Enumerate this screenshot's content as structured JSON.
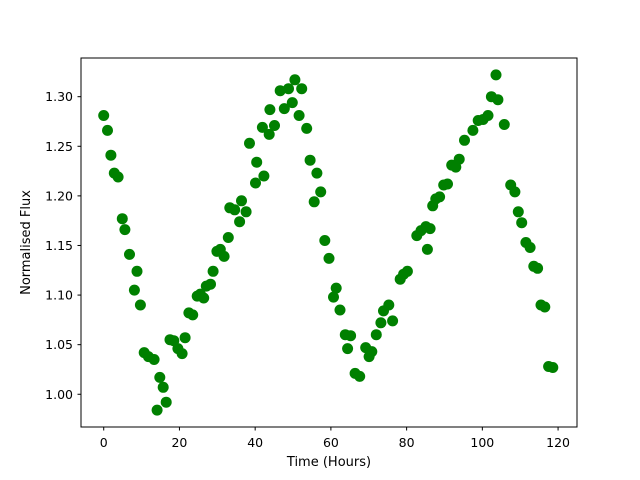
{
  "figure": {
    "background_color": "#ffffff",
    "frame_color": "#000000",
    "text_color": "#000000"
  },
  "chart_data": {
    "type": "scatter",
    "title": "",
    "xlabel": "Time (Hours)",
    "ylabel": "Normalised Flux",
    "xlim": [
      -6.0,
      125.0
    ],
    "ylim": [
      0.967,
      1.339
    ],
    "xticks": [
      0,
      20,
      40,
      60,
      80,
      100,
      120
    ],
    "yticks": [
      1.0,
      1.05,
      1.1,
      1.15,
      1.2,
      1.25,
      1.3
    ],
    "grid": false,
    "legend_position": "none",
    "marker": {
      "shape": "circle",
      "color": "#008000",
      "radius_px": 5.5
    },
    "points": [
      [
        0.0,
        1.281
      ],
      [
        1.0,
        1.266
      ],
      [
        1.9,
        1.241
      ],
      [
        2.8,
        1.223
      ],
      [
        3.8,
        1.219
      ],
      [
        4.9,
        1.177
      ],
      [
        5.6,
        1.166
      ],
      [
        6.8,
        1.141
      ],
      [
        8.1,
        1.105
      ],
      [
        8.8,
        1.124
      ],
      [
        9.7,
        1.09
      ],
      [
        10.7,
        1.042
      ],
      [
        11.8,
        1.038
      ],
      [
        13.3,
        1.035
      ],
      [
        14.1,
        0.984
      ],
      [
        14.8,
        1.017
      ],
      [
        15.7,
        1.007
      ],
      [
        16.5,
        0.992
      ],
      [
        17.5,
        1.055
      ],
      [
        18.5,
        1.054
      ],
      [
        19.6,
        1.046
      ],
      [
        20.7,
        1.041
      ],
      [
        21.5,
        1.057
      ],
      [
        22.5,
        1.082
      ],
      [
        23.5,
        1.08
      ],
      [
        24.7,
        1.099
      ],
      [
        25.5,
        1.101
      ],
      [
        26.4,
        1.097
      ],
      [
        27.1,
        1.109
      ],
      [
        28.2,
        1.111
      ],
      [
        28.9,
        1.124
      ],
      [
        29.9,
        1.144
      ],
      [
        30.8,
        1.146
      ],
      [
        31.8,
        1.139
      ],
      [
        32.9,
        1.158
      ],
      [
        33.3,
        1.188
      ],
      [
        34.6,
        1.186
      ],
      [
        35.9,
        1.174
      ],
      [
        36.4,
        1.195
      ],
      [
        37.6,
        1.184
      ],
      [
        38.5,
        1.253
      ],
      [
        40.1,
        1.213
      ],
      [
        40.4,
        1.234
      ],
      [
        41.9,
        1.269
      ],
      [
        42.3,
        1.22
      ],
      [
        43.7,
        1.262
      ],
      [
        43.9,
        1.287
      ],
      [
        45.1,
        1.271
      ],
      [
        46.6,
        1.306
      ],
      [
        47.7,
        1.288
      ],
      [
        48.8,
        1.308
      ],
      [
        49.8,
        1.294
      ],
      [
        50.5,
        1.317
      ],
      [
        51.6,
        1.281
      ],
      [
        52.3,
        1.308
      ],
      [
        53.6,
        1.268
      ],
      [
        54.5,
        1.236
      ],
      [
        55.6,
        1.194
      ],
      [
        56.3,
        1.223
      ],
      [
        57.3,
        1.204
      ],
      [
        58.4,
        1.155
      ],
      [
        59.5,
        1.137
      ],
      [
        60.7,
        1.098
      ],
      [
        61.4,
        1.107
      ],
      [
        62.4,
        1.085
      ],
      [
        63.8,
        1.06
      ],
      [
        64.4,
        1.046
      ],
      [
        65.2,
        1.059
      ],
      [
        66.4,
        1.021
      ],
      [
        67.6,
        1.018
      ],
      [
        69.2,
        1.047
      ],
      [
        70.1,
        1.038
      ],
      [
        70.8,
        1.043
      ],
      [
        72.0,
        1.06
      ],
      [
        73.2,
        1.072
      ],
      [
        73.9,
        1.084
      ],
      [
        75.3,
        1.09
      ],
      [
        76.3,
        1.074
      ],
      [
        78.3,
        1.116
      ],
      [
        79.2,
        1.121
      ],
      [
        80.2,
        1.124
      ],
      [
        82.7,
        1.16
      ],
      [
        83.8,
        1.165
      ],
      [
        85.1,
        1.169
      ],
      [
        85.5,
        1.146
      ],
      [
        86.2,
        1.167
      ],
      [
        86.9,
        1.19
      ],
      [
        87.7,
        1.197
      ],
      [
        88.7,
        1.199
      ],
      [
        89.8,
        1.211
      ],
      [
        90.8,
        1.212
      ],
      [
        91.9,
        1.231
      ],
      [
        93.0,
        1.229
      ],
      [
        93.9,
        1.237
      ],
      [
        95.3,
        1.256
      ],
      [
        97.5,
        1.266
      ],
      [
        98.9,
        1.276
      ],
      [
        100.2,
        1.277
      ],
      [
        101.5,
        1.281
      ],
      [
        102.4,
        1.3
      ],
      [
        103.6,
        1.322
      ],
      [
        104.1,
        1.297
      ],
      [
        105.8,
        1.272
      ],
      [
        107.5,
        1.211
      ],
      [
        108.6,
        1.204
      ],
      [
        109.5,
        1.184
      ],
      [
        110.4,
        1.173
      ],
      [
        111.5,
        1.153
      ],
      [
        112.6,
        1.148
      ],
      [
        113.6,
        1.129
      ],
      [
        114.6,
        1.127
      ],
      [
        115.5,
        1.09
      ],
      [
        116.5,
        1.088
      ],
      [
        117.5,
        1.028
      ],
      [
        118.6,
        1.027
      ]
    ]
  }
}
